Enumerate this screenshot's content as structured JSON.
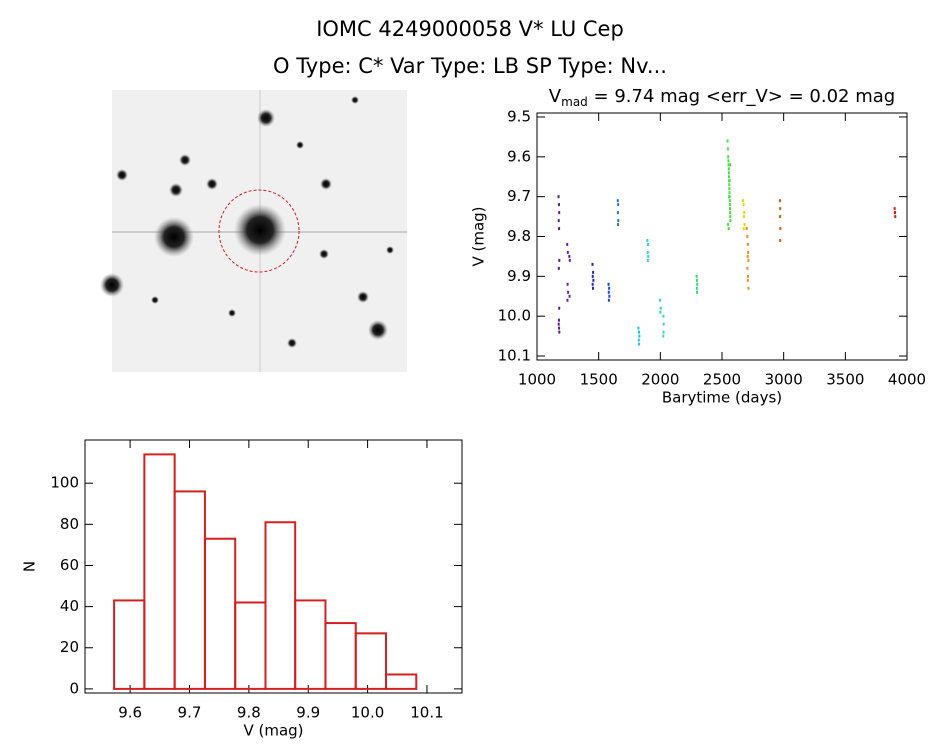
{
  "header": {
    "title": "IOMC 4249000058   V* LU Cep",
    "subtitle": "O Type: C*  Var Type: LB  SP Type: Nv..."
  },
  "chart_data": [
    {
      "type": "scatter",
      "title": {
        "main": "V",
        "subscript": "mad",
        "rest": " = 9.74 mag  <err_V> = 0.02 mag"
      },
      "xlabel": "Barytime (days)",
      "ylabel": "V (mag)",
      "xlim": [
        1000,
        4000
      ],
      "xticks": [
        1000,
        1500,
        2000,
        2500,
        3000,
        3500,
        4000
      ],
      "ylim": [
        10.11,
        9.49
      ],
      "yticks": [
        9.5,
        9.6,
        9.7,
        9.8,
        9.9,
        {
          "value": 10,
          "label": "10.0"
        },
        10.1
      ],
      "series": [
        {
          "color": "#5c1c8c",
          "x": [
            1175,
            1178,
            1180,
            1176,
            1179,
            1181,
            1177,
            1180,
            1178,
            1176,
            1179,
            1181
          ],
          "values": [
            9.7,
            9.72,
            9.74,
            9.76,
            9.78,
            9.86,
            9.88,
            9.98,
            10.01,
            10.02,
            10.03,
            10.04
          ]
        },
        {
          "color": "#6a1fa8",
          "x": [
            1245,
            1250,
            1262,
            1266,
            1248,
            1252,
            1264,
            1247
          ],
          "values": [
            9.82,
            9.84,
            9.85,
            9.86,
            9.92,
            9.94,
            9.95,
            9.96
          ]
        },
        {
          "color": "#2828a8",
          "x": [
            1450,
            1455,
            1452,
            1457,
            1451,
            1454
          ],
          "values": [
            9.87,
            9.89,
            9.9,
            9.91,
            9.92,
            9.93
          ]
        },
        {
          "color": "#1f45c8",
          "x": [
            1580,
            1585,
            1582,
            1587,
            1583
          ],
          "values": [
            9.92,
            9.93,
            9.94,
            9.95,
            9.96
          ]
        },
        {
          "color": "#1f78d6",
          "x": [
            1655,
            1658,
            1656,
            1659,
            1657
          ],
          "values": [
            9.71,
            9.72,
            9.74,
            9.76,
            9.77
          ]
        },
        {
          "color": "#22c4d8",
          "x": [
            1822,
            1827,
            1830,
            1825,
            1828
          ],
          "values": [
            10.03,
            10.04,
            10.05,
            10.06,
            10.07
          ]
        },
        {
          "color": "#33cce6",
          "x": [
            1895,
            1900,
            1898,
            1902,
            1899
          ],
          "values": [
            9.81,
            9.82,
            9.84,
            9.85,
            9.86
          ]
        },
        {
          "color": "#33d6c2",
          "x": [
            1998,
            2003,
            2000,
            2025,
            2027,
            2026,
            2024
          ],
          "values": [
            9.96,
            9.98,
            9.99,
            10.0,
            10.02,
            10.04,
            10.05
          ]
        },
        {
          "color": "#33d680",
          "x": [
            2294,
            2297,
            2299,
            2296,
            2298
          ],
          "values": [
            9.9,
            9.91,
            9.92,
            9.93,
            9.94
          ]
        },
        {
          "color": "#44e044",
          "x": [
            2545,
            2548,
            2550,
            2552,
            2553,
            2555,
            2556,
            2557,
            2558,
            2559,
            2560,
            2561,
            2562,
            2563,
            2564,
            2565,
            2566,
            2567,
            2568,
            2549,
            2554,
            2558,
            2562,
            2566
          ],
          "values": [
            9.56,
            9.58,
            9.6,
            9.61,
            9.62,
            9.63,
            9.64,
            9.65,
            9.66,
            9.67,
            9.68,
            9.69,
            9.7,
            9.71,
            9.72,
            9.73,
            9.74,
            9.75,
            9.76,
            9.77,
            9.78,
            9.7,
            9.66,
            9.62
          ]
        },
        {
          "color": "#e8d400",
          "x": [
            2670,
            2675,
            2680,
            2678,
            2683,
            2676
          ],
          "values": [
            9.71,
            9.72,
            9.74,
            9.75,
            9.77,
            9.78
          ]
        },
        {
          "color": "#e89020",
          "x": [
            2700,
            2705,
            2710,
            2712,
            2708,
            2714,
            2706,
            2711,
            2709,
            2715
          ],
          "values": [
            9.78,
            9.8,
            9.82,
            9.84,
            9.85,
            9.86,
            9.88,
            9.9,
            9.91,
            9.93
          ]
        },
        {
          "color": "#e05a10",
          "x": [
            2970,
            2972,
            2971,
            2973,
            2972
          ],
          "values": [
            9.71,
            9.73,
            9.75,
            9.78,
            9.81
          ]
        },
        {
          "color": "#d42020",
          "x": [
            3900,
            3903,
            3905,
            3902
          ],
          "values": [
            9.73,
            9.74,
            9.75,
            9.74
          ]
        }
      ]
    },
    {
      "type": "histogram",
      "xlabel": "V (mag)",
      "ylabel": "N",
      "color": "#d42020",
      "bins": [
        9.573,
        9.624,
        9.675,
        9.726,
        9.777,
        9.828,
        9.878,
        9.929,
        9.98,
        10.031,
        10.082
      ],
      "values": [
        43,
        114,
        96,
        73,
        42,
        81,
        43,
        32,
        27,
        7
      ],
      "xlim": [
        9.524,
        10.159
      ],
      "xticks": [
        9.6,
        9.7,
        9.8,
        9.9,
        {
          "value": 10,
          "label": "10.0"
        },
        10.1
      ],
      "ylim": [
        -2,
        121
      ],
      "yticks": [
        0,
        20,
        40,
        60,
        80,
        100
      ]
    }
  ]
}
